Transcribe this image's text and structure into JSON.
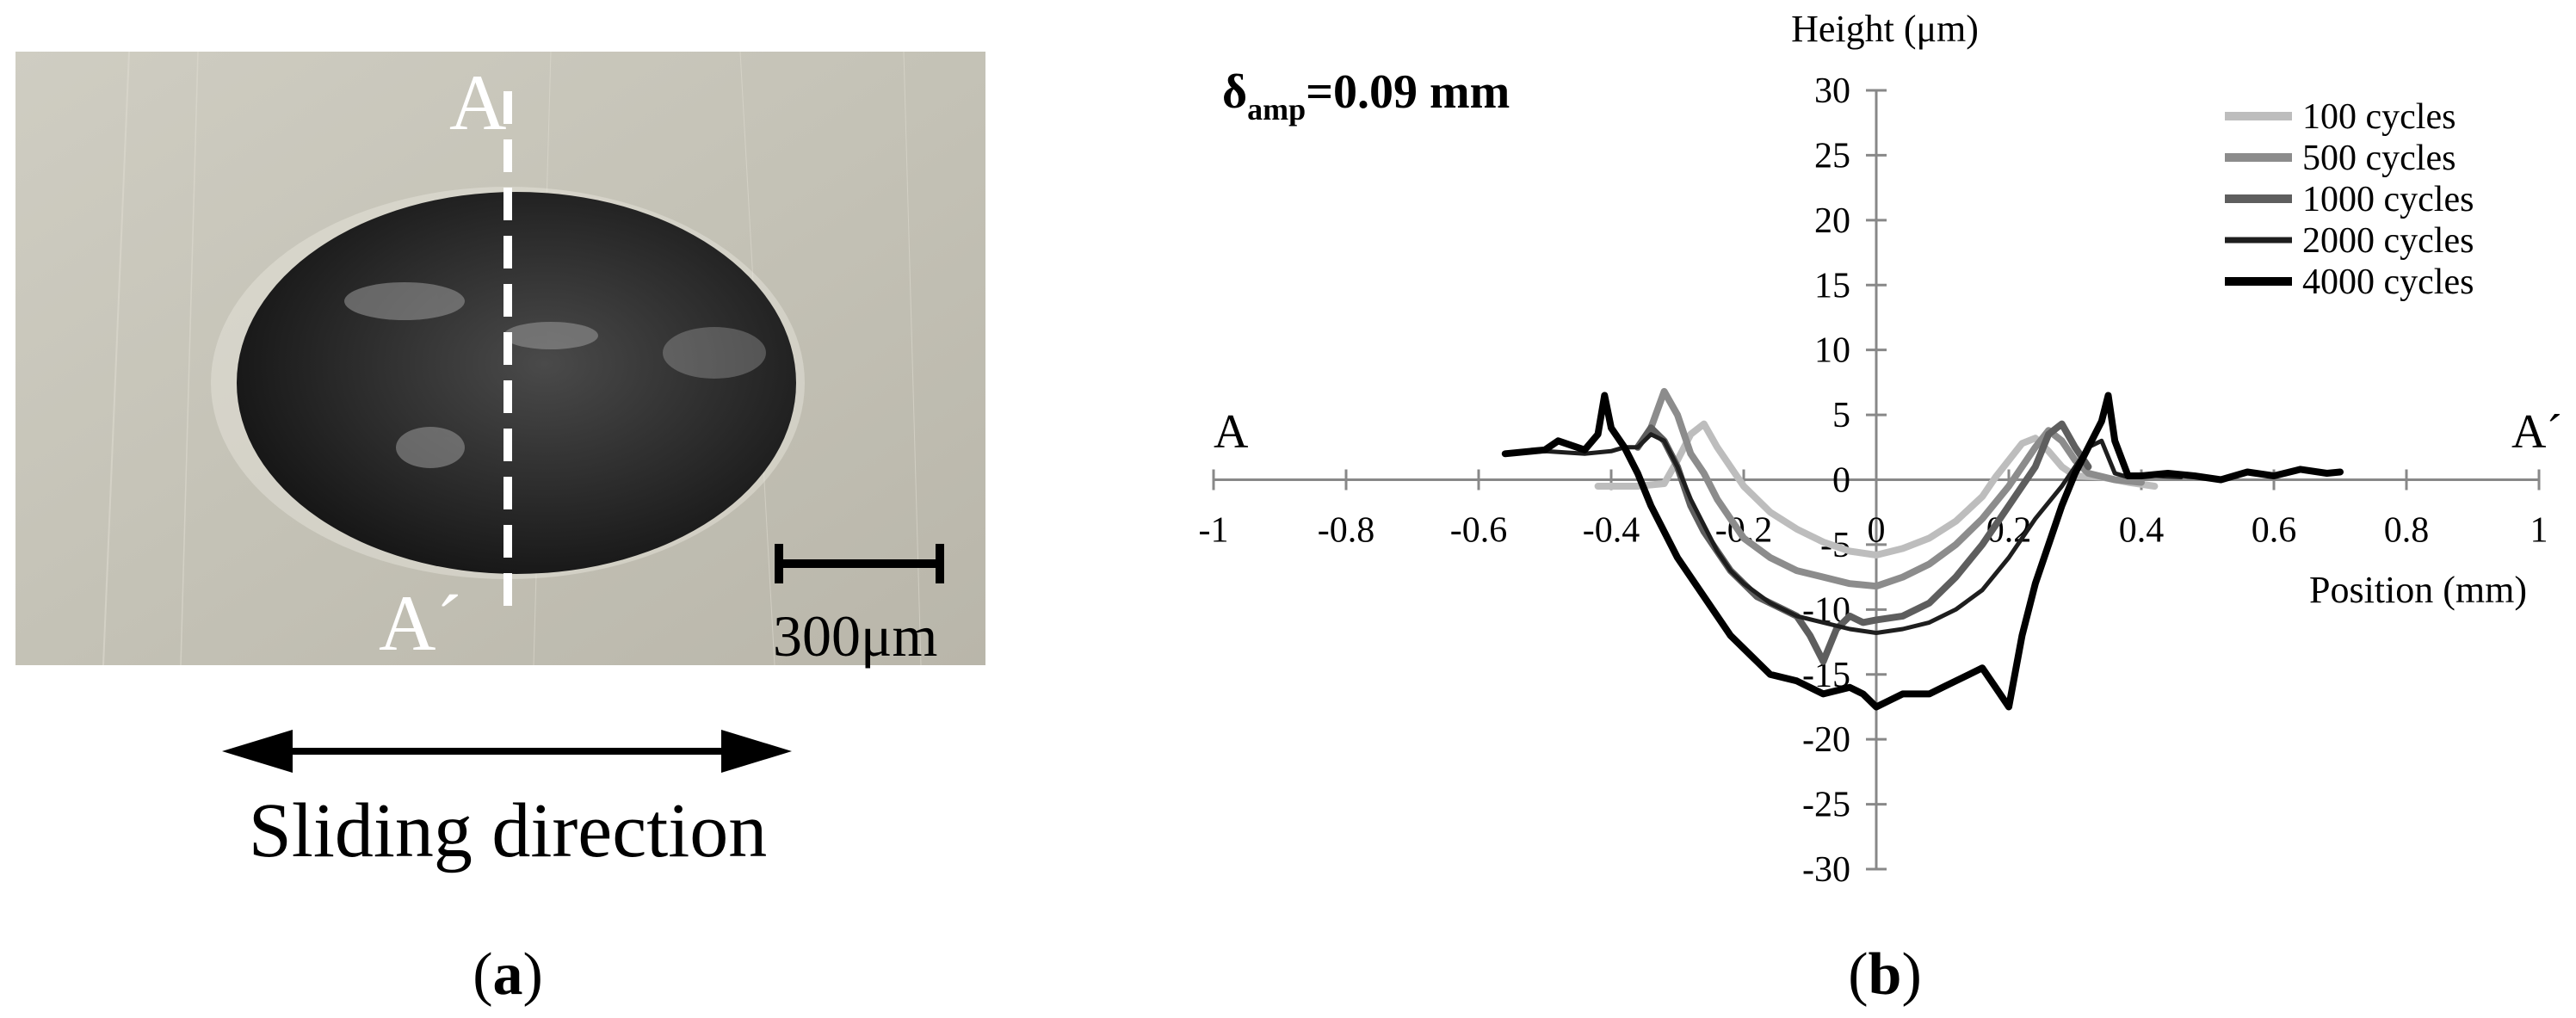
{
  "panel_a": {
    "section_label": "A",
    "section_label_end": "A´",
    "scale_bar_label": "300μm",
    "direction_label": "Sliding direction",
    "caption": "(a)"
  },
  "panel_b": {
    "caption": "(b)",
    "annotation_symbol": "δ",
    "annotation_subscript": "amp",
    "annotation_value": "=0.09 mm",
    "end_label_left": "A",
    "end_label_right": "A´"
  },
  "chart_data": {
    "type": "line",
    "xlabel": "Position (mm)",
    "ylabel": "Height (μm)",
    "xlim": [
      -1,
      1
    ],
    "ylim": [
      -30,
      30
    ],
    "x_ticks": [
      -1,
      -0.8,
      -0.6,
      -0.4,
      -0.2,
      0,
      0.2,
      0.4,
      0.6,
      0.8,
      1
    ],
    "y_ticks": [
      30,
      25,
      20,
      15,
      10,
      5,
      0,
      -5,
      -10,
      -15,
      -20,
      -25,
      -30
    ],
    "x_tick_labels": [
      "-1",
      "-0.8",
      "-0.6",
      "-0.4",
      "-0.2",
      "0",
      "0.2",
      "0.4",
      "0.6",
      "0.8",
      "1"
    ],
    "y_tick_labels": [
      "30",
      "25",
      "20",
      "15",
      "10",
      "5",
      "0",
      "-5",
      "-10",
      "-15",
      "-20",
      "-25",
      "-30"
    ],
    "grid": false,
    "legend_position": "top-right",
    "series": [
      {
        "name": "100 cycles",
        "color": "#bdbdbd",
        "x": [
          -0.42,
          -0.36,
          -0.32,
          -0.3,
          -0.28,
          -0.26,
          -0.24,
          -0.2,
          -0.16,
          -0.12,
          -0.08,
          -0.04,
          0,
          0.04,
          0.08,
          0.12,
          0.16,
          0.18,
          0.2,
          0.22,
          0.24,
          0.26,
          0.28,
          0.3,
          0.34,
          0.38,
          0.42
        ],
        "y": [
          -0.5,
          -0.5,
          -0.3,
          1.5,
          3.5,
          4.3,
          2.5,
          -0.5,
          -2.5,
          -3.8,
          -4.8,
          -5.5,
          -5.8,
          -5.3,
          -4.5,
          -3.2,
          -1.3,
          0.2,
          1.5,
          2.8,
          3.2,
          2.2,
          1.0,
          0.3,
          0.2,
          -0.2,
          -0.5
        ]
      },
      {
        "name": "500 cycles",
        "color": "#8c8c8c",
        "x": [
          -0.34,
          -0.32,
          -0.3,
          -0.28,
          -0.26,
          -0.24,
          -0.22,
          -0.2,
          -0.16,
          -0.12,
          -0.08,
          -0.04,
          0,
          0.04,
          0.08,
          0.12,
          0.16,
          0.2,
          0.22,
          0.24,
          0.26,
          0.28,
          0.3,
          0.32,
          0.36,
          0.4
        ],
        "y": [
          4.0,
          6.8,
          5.0,
          2.0,
          0.5,
          -1.5,
          -3.0,
          -4.5,
          -6.0,
          -7.0,
          -7.5,
          -8.0,
          -8.2,
          -7.5,
          -6.5,
          -5.0,
          -3.0,
          -0.5,
          1.0,
          2.5,
          3.8,
          3.0,
          1.5,
          0.5,
          0.0,
          -0.2
        ]
      },
      {
        "name": "1000 cycles",
        "color": "#5e5e5e",
        "x": [
          -0.36,
          -0.34,
          -0.32,
          -0.3,
          -0.28,
          -0.26,
          -0.24,
          -0.22,
          -0.2,
          -0.18,
          -0.16,
          -0.14,
          -0.12,
          -0.1,
          -0.08,
          -0.06,
          -0.04,
          -0.02,
          0,
          0.04,
          0.08,
          0.12,
          0.16,
          0.2,
          0.24,
          0.26,
          0.28,
          0.3,
          0.32
        ],
        "y": [
          2.5,
          4.0,
          3.0,
          1.0,
          -2.0,
          -4.0,
          -5.5,
          -7.0,
          -8.0,
          -9.0,
          -9.5,
          -10.0,
          -10.5,
          -12.0,
          -14.0,
          -11.5,
          -10.5,
          -11.0,
          -10.8,
          -10.5,
          -9.5,
          -7.5,
          -5.0,
          -2.0,
          1.0,
          3.5,
          4.3,
          2.5,
          1.0
        ]
      },
      {
        "name": "2000 cycles",
        "color": "#1e1e1e",
        "x": [
          -0.56,
          -0.5,
          -0.44,
          -0.4,
          -0.38,
          -0.36,
          -0.34,
          -0.32,
          -0.3,
          -0.28,
          -0.26,
          -0.24,
          -0.22,
          -0.2,
          -0.16,
          -0.12,
          -0.08,
          -0.04,
          0,
          0.04,
          0.08,
          0.12,
          0.16,
          0.2,
          0.24,
          0.28,
          0.3,
          0.32,
          0.34,
          0.36,
          0.38,
          0.42,
          0.46
        ],
        "y": [
          2.0,
          2.2,
          2.0,
          2.2,
          2.5,
          2.5,
          3.5,
          3.0,
          1.0,
          -1.5,
          -3.5,
          -5.5,
          -7.0,
          -8.0,
          -9.5,
          -10.5,
          -11.0,
          -11.5,
          -11.8,
          -11.5,
          -11.0,
          -10.0,
          -8.5,
          -6.0,
          -3.0,
          -0.5,
          1.0,
          2.5,
          3.0,
          0.5,
          0.2,
          0.3,
          0.2
        ]
      },
      {
        "name": "4000 cycles",
        "color": "#000000",
        "x": [
          -0.56,
          -0.5,
          -0.48,
          -0.44,
          -0.42,
          -0.41,
          -0.4,
          -0.38,
          -0.36,
          -0.34,
          -0.32,
          -0.3,
          -0.28,
          -0.26,
          -0.24,
          -0.22,
          -0.2,
          -0.18,
          -0.16,
          -0.12,
          -0.08,
          -0.04,
          -0.02,
          0,
          0.02,
          0.04,
          0.08,
          0.1,
          0.12,
          0.14,
          0.16,
          0.18,
          0.2,
          0.22,
          0.24,
          0.26,
          0.28,
          0.3,
          0.32,
          0.34,
          0.35,
          0.36,
          0.38,
          0.4,
          0.44,
          0.48,
          0.52,
          0.56,
          0.6,
          0.64,
          0.68,
          0.7
        ],
        "y": [
          2.0,
          2.3,
          3.0,
          2.3,
          3.5,
          6.5,
          4.0,
          2.5,
          0.5,
          -2.0,
          -4.0,
          -6.0,
          -7.5,
          -9.0,
          -10.5,
          -12.0,
          -13.0,
          -14.0,
          -15.0,
          -15.5,
          -16.5,
          -16.0,
          -16.5,
          -17.5,
          -17.0,
          -16.5,
          -16.5,
          -16.0,
          -15.5,
          -15.0,
          -14.5,
          -16.0,
          -17.5,
          -12.0,
          -8.0,
          -5.0,
          -2.0,
          0.5,
          2.5,
          4.5,
          6.5,
          3.0,
          0.3,
          0.3,
          0.5,
          0.3,
          0.0,
          0.6,
          0.3,
          0.8,
          0.5,
          0.6
        ]
      }
    ]
  }
}
